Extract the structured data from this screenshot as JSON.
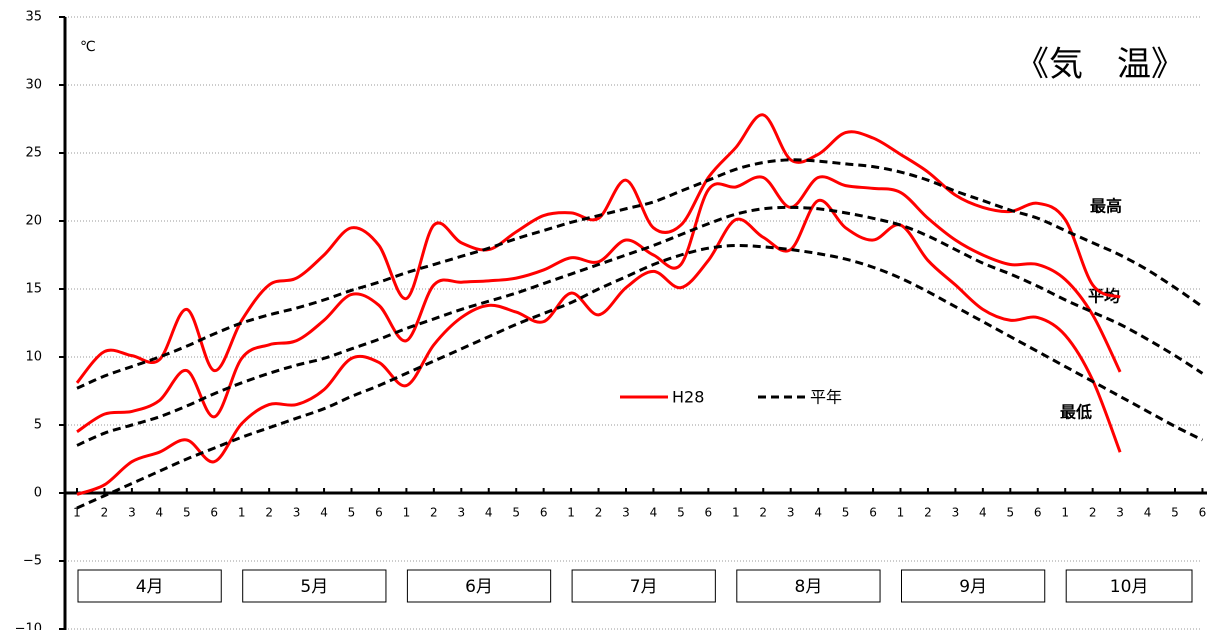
{
  "chart_data": {
    "type": "line",
    "title": "《気　温》",
    "y_unit": "℃",
    "categories": [
      "1",
      "2",
      "3",
      "4",
      "5",
      "6",
      "1",
      "2",
      "3",
      "4",
      "5",
      "6",
      "1",
      "2",
      "3",
      "4",
      "5",
      "6",
      "1",
      "2",
      "3",
      "4",
      "5",
      "6",
      "1",
      "2",
      "3",
      "4",
      "5",
      "6",
      "1",
      "2",
      "3",
      "4",
      "5",
      "6",
      "1",
      "2",
      "3",
      "4",
      "5",
      "6"
    ],
    "months": [
      "4月",
      "5月",
      "6月",
      "7月",
      "8月",
      "9月",
      "10月"
    ],
    "line_labels": [
      "最高",
      "平均",
      "最低"
    ],
    "series": [
      {
        "name": "H28",
        "color": "#ff0000",
        "dashed": false,
        "lines": [
          [
            8.1,
            10.4,
            10.1,
            9.8,
            13.5,
            9.0,
            12.7,
            15.3,
            15.8,
            17.5,
            19.5,
            18.2,
            14.3,
            19.7,
            18.4,
            17.9,
            19.2,
            20.4,
            20.6,
            20.2,
            23.0,
            19.5,
            19.7,
            23.2,
            25.4,
            27.8,
            24.5,
            24.9,
            26.5,
            26.1,
            24.9,
            23.6,
            21.9,
            21.0,
            20.7,
            21.3,
            20.1,
            15.3,
            14.4,
            null,
            null,
            null
          ],
          [
            4.5,
            5.8,
            6.0,
            6.8,
            9.0,
            5.6,
            9.9,
            10.9,
            11.2,
            12.7,
            14.6,
            13.8,
            11.2,
            15.3,
            15.5,
            15.6,
            15.8,
            16.4,
            17.3,
            17.0,
            18.6,
            17.5,
            16.8,
            22.3,
            22.5,
            23.2,
            21.0,
            23.2,
            22.6,
            22.4,
            22.1,
            20.2,
            18.6,
            17.5,
            16.8,
            16.8,
            15.7,
            13.1,
            8.9,
            null,
            null,
            null
          ],
          [
            -0.1,
            0.6,
            2.3,
            3.0,
            3.9,
            2.3,
            5.1,
            6.5,
            6.5,
            7.6,
            9.9,
            9.6,
            7.9,
            10.9,
            12.9,
            13.8,
            13.3,
            12.6,
            14.7,
            13.1,
            15.1,
            16.3,
            15.1,
            17.1,
            20.1,
            18.8,
            17.9,
            21.5,
            19.5,
            18.6,
            19.7,
            17.1,
            15.3,
            13.5,
            12.7,
            12.9,
            11.6,
            8.3,
            3.0,
            null,
            null,
            null
          ]
        ]
      },
      {
        "name": "平年",
        "color": "#000000",
        "dashed": true,
        "lines": [
          [
            7.7,
            8.6,
            9.3,
            10.0,
            10.8,
            11.7,
            12.5,
            13.1,
            13.6,
            14.2,
            14.9,
            15.5,
            16.2,
            16.8,
            17.4,
            18.0,
            18.7,
            19.3,
            19.9,
            20.4,
            20.9,
            21.4,
            22.2,
            23.0,
            23.8,
            24.3,
            24.5,
            24.4,
            24.2,
            24.0,
            23.6,
            23.0,
            22.2,
            21.5,
            20.8,
            20.2,
            19.3,
            18.4,
            17.5,
            16.4,
            15.1,
            13.7
          ],
          [
            3.5,
            4.4,
            5.0,
            5.6,
            6.4,
            7.3,
            8.1,
            8.8,
            9.4,
            9.9,
            10.6,
            11.3,
            12.1,
            12.8,
            13.5,
            14.1,
            14.7,
            15.4,
            16.1,
            16.8,
            17.5,
            18.2,
            19.0,
            19.8,
            20.5,
            20.9,
            21.0,
            20.9,
            20.6,
            20.2,
            19.7,
            18.9,
            17.9,
            16.9,
            16.1,
            15.2,
            14.2,
            13.3,
            12.4,
            11.3,
            10.1,
            8.8
          ],
          [
            -1.1,
            -0.2,
            0.7,
            1.6,
            2.5,
            3.3,
            4.1,
            4.8,
            5.5,
            6.2,
            7.1,
            7.9,
            8.8,
            9.7,
            10.6,
            11.5,
            12.4,
            13.2,
            14.0,
            15.0,
            15.9,
            16.8,
            17.5,
            18.0,
            18.2,
            18.1,
            17.9,
            17.6,
            17.2,
            16.6,
            15.8,
            14.8,
            13.7,
            12.6,
            11.5,
            10.4,
            9.3,
            8.2,
            7.1,
            6.0,
            4.9,
            3.9
          ]
        ]
      }
    ],
    "ylim": [
      -10,
      35
    ],
    "yticks": [
      {
        "value": -10,
        "label": "−10"
      },
      {
        "value": -5,
        "label": "−5"
      },
      0,
      5,
      10,
      15,
      20,
      25,
      30,
      35
    ],
    "grid": true
  }
}
